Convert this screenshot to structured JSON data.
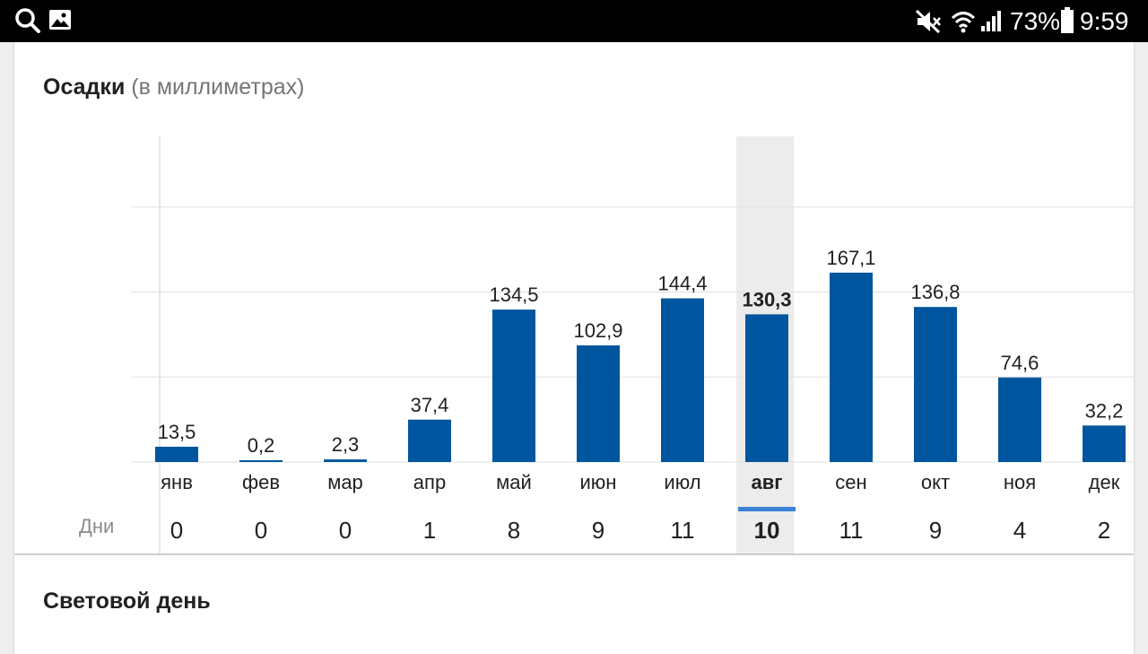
{
  "status_bar": {
    "battery_percent": "73%",
    "time": "9:59",
    "left_icons": [
      "search-icon",
      "image-icon"
    ],
    "right_icons": [
      "mute-icon",
      "wifi-icon",
      "signal-icon",
      "battery-icon"
    ]
  },
  "precipitation": {
    "title": "Осадки",
    "subtitle": "(в миллиметрах)",
    "days_label": "Дни",
    "selected_month_index": 7,
    "colors": {
      "bar": "#00569e",
      "highlight": "#ececec",
      "indicator": "#3b82d6",
      "grid": "#e0e0e0"
    }
  },
  "chart_data": {
    "type": "bar",
    "categories": [
      "янв",
      "фев",
      "мар",
      "апр",
      "май",
      "июн",
      "июл",
      "авг",
      "сен",
      "окт",
      "ноя",
      "дек"
    ],
    "values": [
      13.5,
      0.2,
      2.3,
      37.4,
      134.5,
      102.9,
      144.4,
      130.3,
      167.1,
      136.8,
      74.6,
      32.2
    ],
    "value_labels": [
      "13,5",
      "0,2",
      "2,3",
      "37,4",
      "134,5",
      "102,9",
      "144,4",
      "130,3",
      "167,1",
      "136,8",
      "74,6",
      "32,2"
    ],
    "rainy_days": [
      "0",
      "0",
      "0",
      "1",
      "8",
      "9",
      "11",
      "10",
      "11",
      "9",
      "4",
      "2"
    ],
    "ylim": [
      0,
      300
    ],
    "grid_values": [
      0,
      75,
      150,
      225
    ],
    "grid": true,
    "legend": "none"
  },
  "daylight": {
    "title": "Световой день"
  }
}
